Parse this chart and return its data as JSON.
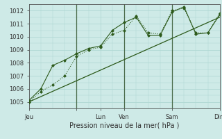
{
  "background_color": "#ceeae7",
  "grid_color": "#b0d8d3",
  "line_color": "#2d5a1b",
  "vline_color": "#4a6b4a",
  "title": "Pression niveau de la mer( hPa )",
  "xlim": [
    0,
    96
  ],
  "ylim": [
    1004.5,
    1012.5
  ],
  "yticks": [
    1005,
    1006,
    1007,
    1008,
    1009,
    1010,
    1011,
    1012
  ],
  "xtick_positions": [
    0,
    24,
    36,
    48,
    72,
    96
  ],
  "xtick_labels": [
    "Jeu",
    "",
    "Lun",
    "Ven",
    "Sam",
    "Dim"
  ],
  "series1_dotted": {
    "x": [
      0,
      6,
      12,
      18,
      24,
      30,
      36,
      42,
      48,
      54,
      60,
      66,
      72,
      78,
      84,
      90,
      96
    ],
    "y": [
      1005.0,
      1005.8,
      1006.3,
      1007.0,
      1008.5,
      1009.0,
      1009.2,
      1010.2,
      1010.5,
      1011.6,
      1010.3,
      1010.2,
      1012.0,
      1012.2,
      1010.3,
      1010.3,
      1011.8
    ]
  },
  "series2_solid": {
    "x": [
      0,
      6,
      12,
      18,
      24,
      30,
      36,
      42,
      48,
      54,
      60,
      66,
      72,
      78,
      84,
      90,
      96
    ],
    "y": [
      1005.1,
      1006.0,
      1007.8,
      1008.2,
      1008.7,
      1009.1,
      1009.3,
      1010.5,
      1011.1,
      1011.5,
      1010.1,
      1010.1,
      1011.9,
      1012.3,
      1010.2,
      1010.3,
      1011.7
    ]
  },
  "series3_trend": {
    "x": [
      0,
      96
    ],
    "y": [
      1005.0,
      1011.5
    ]
  },
  "vlines": [
    24,
    48,
    72
  ]
}
